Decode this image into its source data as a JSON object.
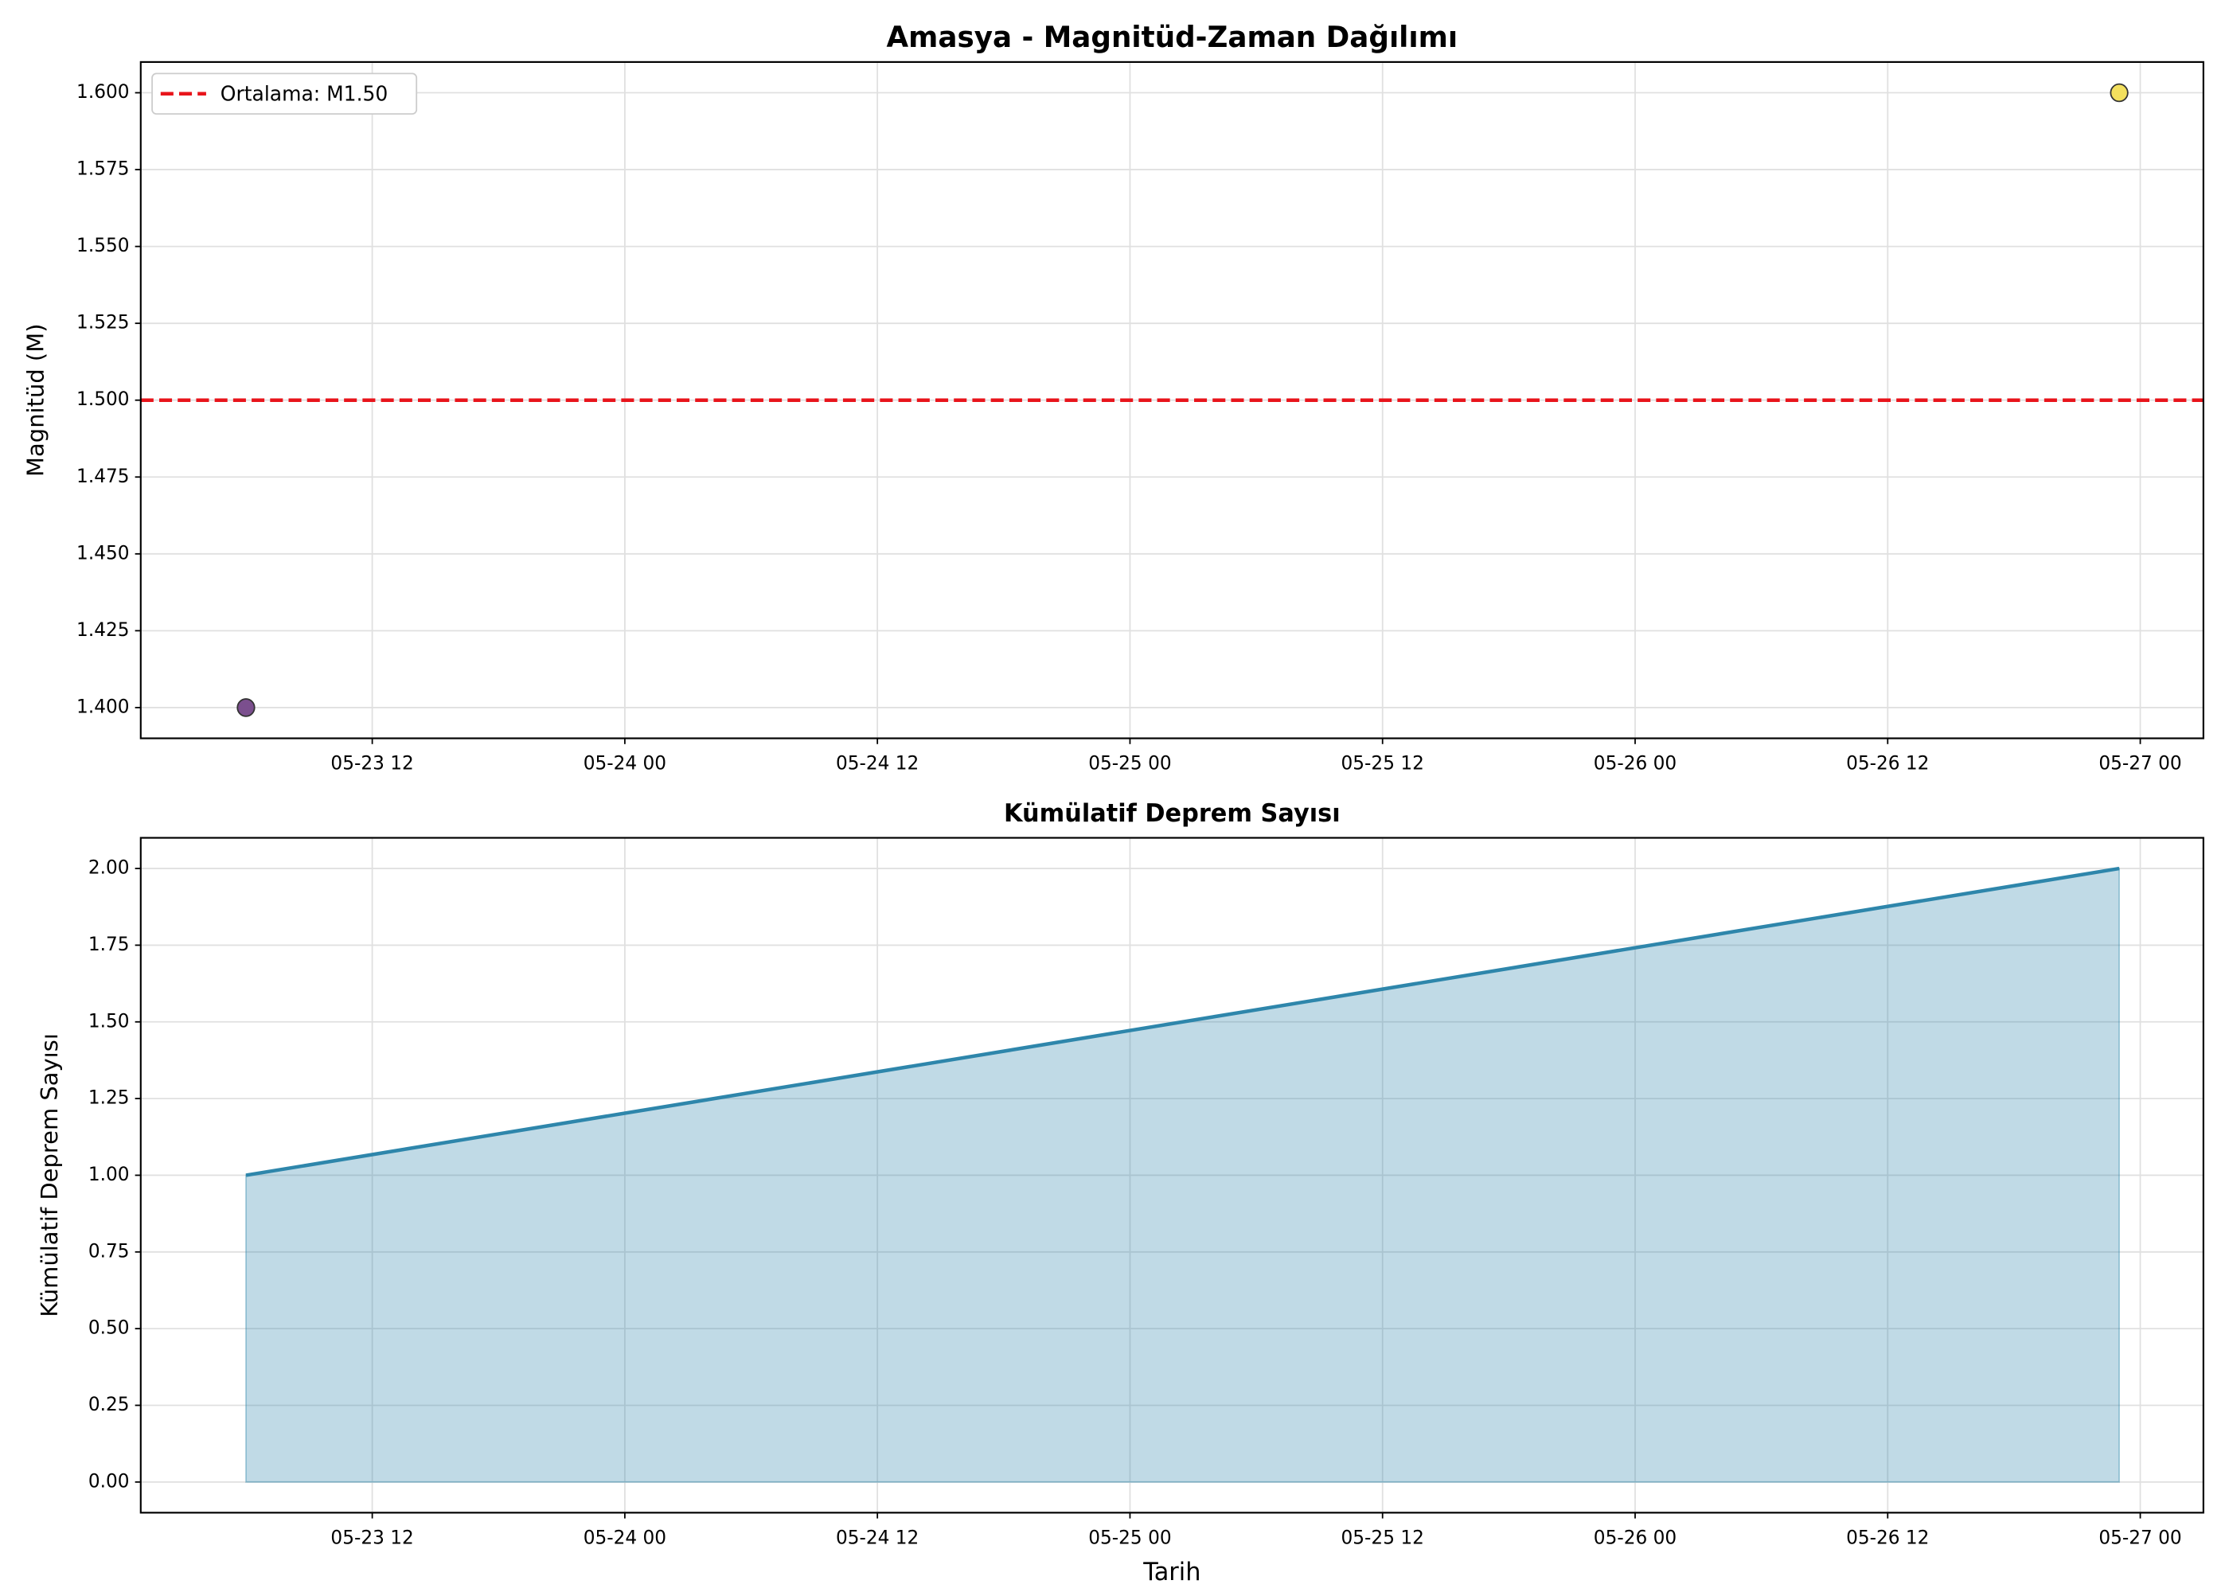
{
  "chart_data": [
    {
      "type": "scatter",
      "title": "Amasya - Magnitüd-Zaman Dağılımı",
      "y_label": "Magnitüd (M)",
      "x": [
        "05-23 06",
        "05-26 23"
      ],
      "values": [
        1.4,
        1.6
      ],
      "colors": [
        "#7b4f8e",
        "#f3e05e"
      ],
      "mean": 1.5,
      "mean_label": "Ortalama: M1.50",
      "mean_color": "#e8141b",
      "legend": "upper left",
      "xlim": [
        "05-23 01",
        "05-27 03"
      ],
      "xticks": [
        "05-23 12",
        "05-24 00",
        "05-24 12",
        "05-25 00",
        "05-25 12",
        "05-26 00",
        "05-26 12",
        "05-27 00"
      ],
      "ylim": [
        1.39,
        1.61
      ],
      "yticks": [
        {
          "value": 1.4,
          "label": "1.400"
        },
        {
          "value": 1.425,
          "label": "1.425"
        },
        {
          "value": 1.45,
          "label": "1.450"
        },
        {
          "value": 1.475,
          "label": "1.475"
        },
        {
          "value": 1.5,
          "label": "1.500"
        },
        {
          "value": 1.525,
          "label": "1.525"
        },
        {
          "value": 1.55,
          "label": "1.550"
        },
        {
          "value": 1.575,
          "label": "1.575"
        },
        {
          "value": 1.6,
          "label": "1.600"
        }
      ],
      "grid": true
    },
    {
      "type": "area",
      "title": "Kümülatif Deprem Sayısı",
      "x_label": "Tarih",
      "y_label": "Kümülatif Deprem Sayısı",
      "x": [
        "05-23 06",
        "05-26 23"
      ],
      "values": [
        1,
        2
      ],
      "color": "#2e86ab",
      "xlim": [
        "05-23 01",
        "05-27 03"
      ],
      "xticks": [
        "05-23 12",
        "05-24 00",
        "05-24 12",
        "05-25 00",
        "05-25 12",
        "05-26 00",
        "05-26 12",
        "05-27 00"
      ],
      "ylim": [
        -0.1,
        2.1
      ],
      "yticks": [
        {
          "value": 0,
          "label": "0.00"
        },
        {
          "value": 0.25,
          "label": "0.25"
        },
        {
          "value": 0.5,
          "label": "0.50"
        },
        {
          "value": 0.75,
          "label": "0.75"
        },
        {
          "value": 1,
          "label": "1.00"
        },
        {
          "value": 1.25,
          "label": "1.25"
        },
        {
          "value": 1.5,
          "label": "1.50"
        },
        {
          "value": 1.75,
          "label": "1.75"
        },
        {
          "value": 2,
          "label": "2.00"
        }
      ],
      "grid": true
    }
  ]
}
